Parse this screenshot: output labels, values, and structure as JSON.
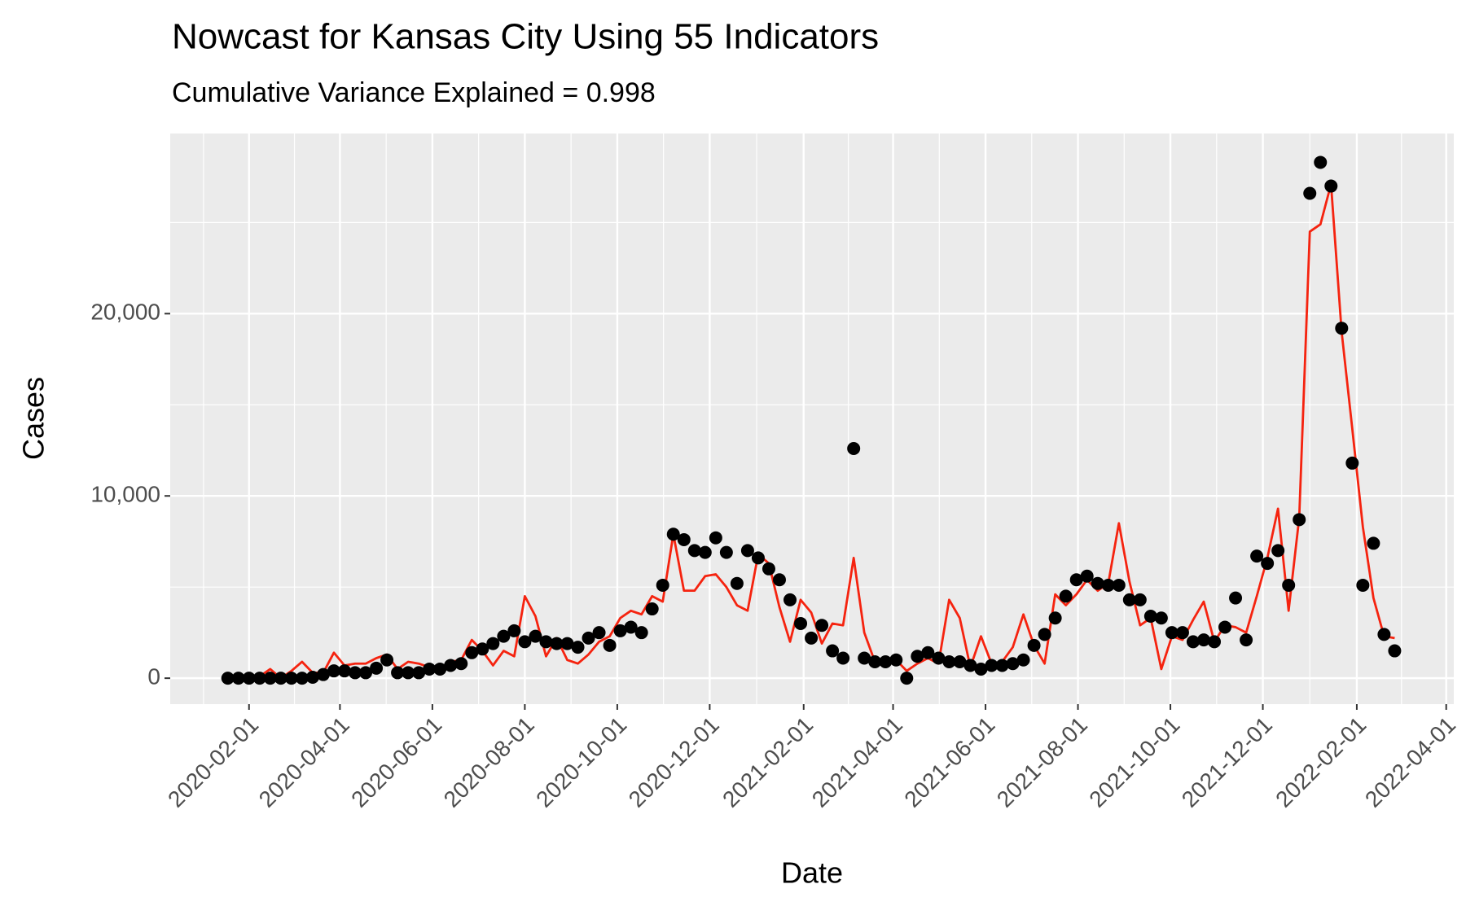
{
  "chart_data": {
    "type": "line",
    "title": "Nowcast for Kansas City Using 55 Indicators",
    "subtitle": "Cumulative Variance Explained = 0.998",
    "x_label": "Date",
    "y_label": "Cases",
    "x": [
      "2020-01-18",
      "2020-01-25",
      "2020-02-01",
      "2020-02-08",
      "2020-02-15",
      "2020-02-22",
      "2020-02-29",
      "2020-03-07",
      "2020-03-14",
      "2020-03-21",
      "2020-03-28",
      "2020-04-04",
      "2020-04-11",
      "2020-04-18",
      "2020-04-25",
      "2020-05-02",
      "2020-05-09",
      "2020-05-16",
      "2020-05-23",
      "2020-05-30",
      "2020-06-06",
      "2020-06-13",
      "2020-06-20",
      "2020-06-27",
      "2020-07-04",
      "2020-07-11",
      "2020-07-18",
      "2020-07-25",
      "2020-08-01",
      "2020-08-08",
      "2020-08-15",
      "2020-08-22",
      "2020-08-29",
      "2020-09-05",
      "2020-09-12",
      "2020-09-19",
      "2020-09-26",
      "2020-10-03",
      "2020-10-10",
      "2020-10-17",
      "2020-10-24",
      "2020-10-31",
      "2020-11-07",
      "2020-11-14",
      "2020-11-21",
      "2020-11-28",
      "2020-12-05",
      "2020-12-12",
      "2020-12-19",
      "2020-12-26",
      "2021-01-02",
      "2021-01-09",
      "2021-01-16",
      "2021-01-23",
      "2021-01-30",
      "2021-02-06",
      "2021-02-13",
      "2021-02-20",
      "2021-02-27",
      "2021-03-06",
      "2021-03-13",
      "2021-03-20",
      "2021-03-27",
      "2021-04-03",
      "2021-04-10",
      "2021-04-17",
      "2021-04-24",
      "2021-05-01",
      "2021-05-08",
      "2021-05-15",
      "2021-05-22",
      "2021-05-29",
      "2021-06-05",
      "2021-06-12",
      "2021-06-19",
      "2021-06-26",
      "2021-07-03",
      "2021-07-10",
      "2021-07-17",
      "2021-07-24",
      "2021-07-31",
      "2021-08-07",
      "2021-08-14",
      "2021-08-21",
      "2021-08-28",
      "2021-09-04",
      "2021-09-11",
      "2021-09-18",
      "2021-09-25",
      "2021-10-02",
      "2021-10-09",
      "2021-10-16",
      "2021-10-23",
      "2021-10-30",
      "2021-11-06",
      "2021-11-13",
      "2021-11-20",
      "2021-11-27",
      "2021-12-04",
      "2021-12-11",
      "2021-12-18",
      "2021-12-25",
      "2022-01-01",
      "2022-01-08",
      "2022-01-15",
      "2022-01-22",
      "2022-01-29",
      "2022-02-05",
      "2022-02-12",
      "2022-02-19",
      "2022-02-26"
    ],
    "series": [
      {
        "mark": "line",
        "color": "#f5230f",
        "values": [
          0,
          100,
          0,
          100,
          500,
          0,
          400,
          900,
          300,
          300,
          1400,
          700,
          800,
          800,
          1100,
          1300,
          500,
          900,
          800,
          600,
          500,
          900,
          1000,
          2100,
          1500,
          700,
          1500,
          1200,
          4500,
          3400,
          1200,
          2200,
          1000,
          800,
          1300,
          2000,
          2300,
          3300,
          3700,
          3500,
          4500,
          4200,
          7900,
          4800,
          4800,
          5600,
          5700,
          5000,
          4000,
          3700,
          6800,
          6300,
          3900,
          2000,
          4300,
          3600,
          1900,
          3000,
          2900,
          6600,
          2500,
          900,
          1000,
          1000,
          400,
          800,
          1100,
          800,
          4300,
          3300,
          600,
          2300,
          800,
          900,
          1700,
          3500,
          1800,
          800,
          4600,
          4000,
          4600,
          5400,
          4800,
          5200,
          8500,
          5300,
          2900,
          3300,
          500,
          2300,
          2100,
          3200,
          4200,
          2000,
          2900,
          2800,
          2500,
          4500,
          6600,
          9300,
          3700,
          8800,
          24500,
          24900,
          27100,
          19000,
          13700,
          8300,
          4400,
          2300,
          2200
        ]
      },
      {
        "mark": "point",
        "color": "#000000",
        "values": [
          0,
          0,
          0,
          0,
          0,
          0,
          0,
          0,
          50,
          200,
          400,
          400,
          300,
          300,
          550,
          1000,
          300,
          300,
          300,
          500,
          500,
          700,
          800,
          1400,
          1600,
          1900,
          2300,
          2600,
          2000,
          2300,
          2000,
          1900,
          1900,
          1700,
          2200,
          2500,
          1800,
          2600,
          2800,
          2500,
          3800,
          5100,
          7900,
          7600,
          7000,
          6900,
          7700,
          6900,
          5200,
          7000,
          6600,
          6000,
          5400,
          4300,
          3000,
          2200,
          2900,
          1500,
          1100,
          12600,
          1100,
          900,
          900,
          1000,
          0,
          1200,
          1400,
          1100,
          900,
          900,
          700,
          500,
          700,
          700,
          800,
          1000,
          1800,
          2400,
          3300,
          4500,
          5400,
          5600,
          5200,
          5100,
          5100,
          4300,
          4300,
          3400,
          3300,
          2500,
          2500,
          2000,
          2100,
          2000,
          2800,
          4400,
          2100,
          6700,
          6300,
          7000,
          5100,
          8700,
          26600,
          28300,
          27000,
          19200,
          11800,
          5100,
          7400,
          2400,
          1500
        ]
      }
    ],
    "xlim": [
      "2019-12-11",
      "2022-04-06"
    ],
    "xticks": [
      "2020-02-01",
      "2020-04-01",
      "2020-06-01",
      "2020-08-01",
      "2020-10-01",
      "2020-12-01",
      "2021-02-01",
      "2021-04-01",
      "2021-06-01",
      "2021-08-01",
      "2021-10-01",
      "2021-12-01",
      "2022-02-01",
      "2022-04-01"
    ],
    "ylim": [
      -1423,
      29883
    ],
    "yticks": [
      0,
      {
        "value": 10000,
        "label": "10,000"
      },
      {
        "value": 20000,
        "label": "20,000"
      }
    ],
    "grid": true,
    "panel_color": "#ebebeb"
  }
}
